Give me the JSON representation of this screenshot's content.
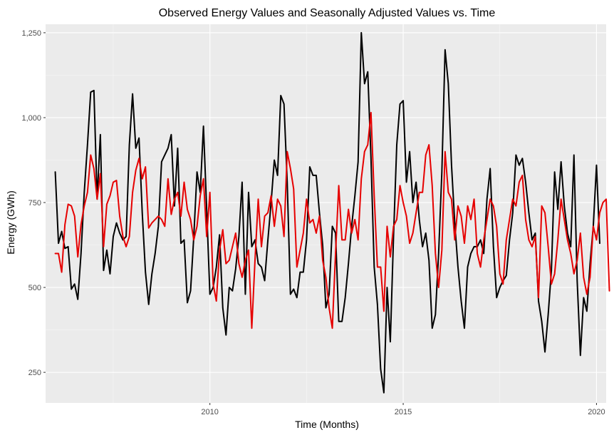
{
  "chart_data": {
    "type": "line",
    "title": "Observed Energy Values and Seasonally Adjusted Values vs. Time",
    "xlabel": "Time (Months)",
    "ylabel": "Energy (GWh)",
    "xlim": [
      2005.75,
      2020.25
    ],
    "ylim": [
      160,
      1275
    ],
    "x_ticks": [
      2010,
      2015,
      2020
    ],
    "x_tick_labels": [
      "2010",
      "2015",
      "2020"
    ],
    "y_ticks": [
      250,
      500,
      750,
      1000,
      1250
    ],
    "y_tick_labels": [
      "250",
      "500",
      "750",
      "1,000",
      "1,250"
    ],
    "grid": true,
    "legend": "none",
    "x_start": 2006.0,
    "x_step": 0.0833333,
    "series": [
      {
        "color": "#000000",
        "values": [
          840,
          630,
          665,
          615,
          620,
          495,
          510,
          465,
          600,
          780,
          920,
          1075,
          1080,
          760,
          950,
          550,
          610,
          540,
          650,
          690,
          660,
          640,
          650,
          920,
          1070,
          910,
          940,
          720,
          545,
          450,
          540,
          600,
          680,
          870,
          890,
          910,
          950,
          740,
          910,
          630,
          640,
          455,
          490,
          650,
          840,
          780,
          975,
          730,
          480,
          500,
          560,
          655,
          440,
          360,
          500,
          490,
          555,
          650,
          810,
          480,
          780,
          620,
          640,
          570,
          560,
          520,
          640,
          750,
          875,
          830,
          1065,
          1040,
          810,
          480,
          495,
          470,
          545,
          545,
          640,
          855,
          830,
          830,
          720,
          625,
          440,
          480,
          680,
          660,
          400,
          400,
          470,
          570,
          680,
          770,
          870,
          1250,
          1100,
          1135,
          880,
          560,
          450,
          260,
          190,
          500,
          340,
          650,
          920,
          1040,
          1050,
          810,
          900,
          750,
          810,
          700,
          620,
          660,
          580,
          380,
          420,
          600,
          840,
          1200,
          1100,
          860,
          690,
          560,
          460,
          380,
          560,
          600,
          620,
          620,
          640,
          600,
          760,
          850,
          620,
          470,
          500,
          520,
          535,
          640,
          720,
          890,
          860,
          880,
          810,
          720,
          640,
          660,
          460,
          400,
          310,
          420,
          550,
          840,
          730,
          870,
          740,
          660,
          620,
          890,
          520,
          300,
          470,
          430,
          570,
          680,
          860,
          630
        ]
      },
      {
        "color": "#e60000",
        "values": [
          600,
          600,
          545,
          685,
          745,
          740,
          710,
          590,
          685,
          740,
          780,
          890,
          850,
          760,
          835,
          620,
          745,
          770,
          810,
          815,
          710,
          650,
          620,
          650,
          780,
          845,
          880,
          820,
          855,
          675,
          690,
          700,
          710,
          700,
          680,
          820,
          715,
          760,
          780,
          710,
          810,
          730,
          700,
          640,
          680,
          770,
          820,
          650,
          780,
          510,
          460,
          610,
          670,
          570,
          580,
          620,
          660,
          570,
          530,
          580,
          610,
          380,
          580,
          760,
          620,
          710,
          720,
          770,
          680,
          760,
          740,
          650,
          900,
          850,
          790,
          560,
          610,
          660,
          760,
          690,
          700,
          660,
          710,
          580,
          530,
          440,
          380,
          600,
          800,
          640,
          640,
          730,
          660,
          700,
          640,
          820,
          900,
          920,
          1015,
          770,
          560,
          560,
          430,
          680,
          590,
          680,
          700,
          800,
          750,
          710,
          630,
          660,
          720,
          780,
          780,
          890,
          920,
          800,
          600,
          500,
          610,
          900,
          780,
          760,
          640,
          740,
          710,
          630,
          740,
          700,
          760,
          600,
          560,
          640,
          700,
          760,
          740,
          680,
          540,
          510,
          640,
          700,
          760,
          740,
          810,
          830,
          700,
          640,
          620,
          650,
          470,
          740,
          720,
          620,
          510,
          540,
          640,
          760,
          700,
          640,
          600,
          540,
          580,
          660,
          530,
          480,
          530,
          680,
          640,
          720,
          750,
          760,
          490
        ]
      }
    ]
  }
}
